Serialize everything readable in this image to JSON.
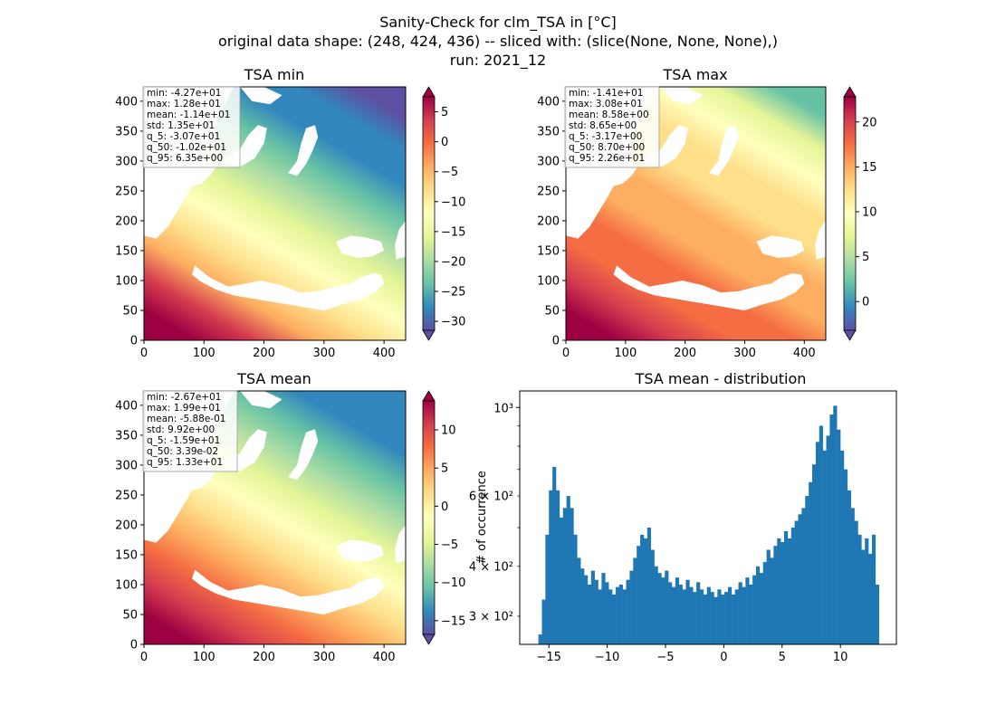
{
  "figure": {
    "title_lines": [
      "Sanity-Check for clm_TSA in [°C]",
      "original data shape: (248, 424, 436) -- sliced with: (slice(None, None, None),)",
      "run: 2021_12"
    ]
  },
  "colors": {
    "colormap": "Spectral_r",
    "colormap_stops": [
      "#5e4fa2",
      "#3288bd",
      "#66c2a5",
      "#abdda4",
      "#e6f598",
      "#ffffbf",
      "#fee08b",
      "#fdae61",
      "#f46d43",
      "#d53e4f",
      "#9e0142"
    ],
    "histogram_bar": "#1f77b4"
  },
  "chart_data": [
    {
      "type": "heatmap",
      "title": "TSA min",
      "x_ticks": [
        "0",
        "100",
        "200",
        "300",
        "400"
      ],
      "y_ticks": [
        "0",
        "50",
        "100",
        "150",
        "200",
        "250",
        "300",
        "350",
        "400"
      ],
      "xlim": [
        0,
        436
      ],
      "ylim": [
        0,
        424
      ],
      "colorbar": {
        "range": [
          -31.5,
          7.5
        ],
        "ticks": [
          "5",
          "0",
          "−5",
          "−10",
          "−15",
          "−20",
          "−25",
          "−30"
        ],
        "tick_values": [
          5,
          0,
          -5,
          -10,
          -15,
          -20,
          -25,
          -30
        ],
        "extend": "both"
      },
      "stats": [
        "min: -4.27e+01",
        "max: 1.28e+01",
        "mean: -1.14e+01",
        "std: 1.35e+01",
        "q_5: -3.07e+01",
        "q_50: -1.02e+01",
        "q_95: 6.35e+00"
      ]
    },
    {
      "type": "heatmap",
      "title": "TSA max",
      "x_ticks": [
        "0",
        "100",
        "200",
        "300",
        "400"
      ],
      "y_ticks": [
        "0",
        "50",
        "100",
        "150",
        "200",
        "250",
        "300",
        "350",
        "400"
      ],
      "xlim": [
        0,
        436
      ],
      "ylim": [
        0,
        424
      ],
      "colorbar": {
        "range": [
          -3.2,
          22.8
        ],
        "ticks": [
          "20",
          "15",
          "10",
          "5",
          "0"
        ],
        "tick_values": [
          20,
          15,
          10,
          5,
          0
        ],
        "extend": "both"
      },
      "stats": [
        "min: -1.41e+01",
        "max: 3.08e+01",
        "mean: 8.58e+00",
        "std: 8.65e+00",
        "q_5: -3.17e+00",
        "q_50: 8.70e+00",
        "q_95: 2.26e+01"
      ]
    },
    {
      "type": "heatmap",
      "title": "TSA mean",
      "x_ticks": [
        "0",
        "100",
        "200",
        "300",
        "400"
      ],
      "y_ticks": [
        "0",
        "50",
        "100",
        "150",
        "200",
        "250",
        "300",
        "350",
        "400"
      ],
      "xlim": [
        0,
        436
      ],
      "ylim": [
        0,
        424
      ],
      "colorbar": {
        "range": [
          -16.8,
          13.8
        ],
        "ticks": [
          "10",
          "5",
          "0",
          "−5",
          "−10",
          "−15"
        ],
        "tick_values": [
          10,
          5,
          0,
          -5,
          -10,
          -15
        ],
        "extend": "both"
      },
      "stats": [
        "min: -2.67e+01",
        "max: 1.99e+01",
        "mean: -5.88e-01",
        "std: 9.92e+00",
        "q_5: -1.59e+01",
        "q_50: 3.39e-02",
        "q_95: 1.33e+01"
      ]
    },
    {
      "type": "bar",
      "title": "TSA mean - distribution",
      "ylabel": "# of occurrence",
      "yscale": "log",
      "x_ticks": [
        "−15",
        "−10",
        "−5",
        "0",
        "5",
        "10"
      ],
      "x_tick_values": [
        -15,
        -10,
        -5,
        0,
        5,
        10
      ],
      "xlim": [
        -17.5,
        14.8
      ],
      "ylim": [
        255,
        1100
      ],
      "y_major_ticks": [
        "10³"
      ],
      "y_minor_labels": [
        "6 × 10²",
        "4 × 10²",
        "3 × 10²"
      ],
      "y_minor_values": [
        600,
        400,
        300
      ],
      "x_start": -15.9,
      "x_end": 13.3,
      "bins": [
        {
          "x": -15.8,
          "y": 270
        },
        {
          "x": -15.5,
          "y": 330
        },
        {
          "x": -15.2,
          "y": 480
        },
        {
          "x": -14.9,
          "y": 620
        },
        {
          "x": -14.6,
          "y": 710
        },
        {
          "x": -14.3,
          "y": 620
        },
        {
          "x": -14.0,
          "y": 530
        },
        {
          "x": -13.7,
          "y": 560
        },
        {
          "x": -13.4,
          "y": 600
        },
        {
          "x": -13.1,
          "y": 560
        },
        {
          "x": -12.8,
          "y": 480
        },
        {
          "x": -12.5,
          "y": 420
        },
        {
          "x": -12.2,
          "y": 395
        },
        {
          "x": -11.9,
          "y": 380
        },
        {
          "x": -11.6,
          "y": 360
        },
        {
          "x": -11.3,
          "y": 390
        },
        {
          "x": -11.0,
          "y": 370
        },
        {
          "x": -10.7,
          "y": 350
        },
        {
          "x": -10.4,
          "y": 385
        },
        {
          "x": -10.1,
          "y": 365
        },
        {
          "x": -9.8,
          "y": 350
        },
        {
          "x": -9.5,
          "y": 340
        },
        {
          "x": -9.2,
          "y": 355
        },
        {
          "x": -8.9,
          "y": 360
        },
        {
          "x": -8.6,
          "y": 350
        },
        {
          "x": -8.3,
          "y": 370
        },
        {
          "x": -8.0,
          "y": 390
        },
        {
          "x": -7.7,
          "y": 420
        },
        {
          "x": -7.4,
          "y": 450
        },
        {
          "x": -7.1,
          "y": 480
        },
        {
          "x": -6.8,
          "y": 470
        },
        {
          "x": -6.5,
          "y": 500
        },
        {
          "x": -6.2,
          "y": 440
        },
        {
          "x": -5.9,
          "y": 400
        },
        {
          "x": -5.6,
          "y": 385
        },
        {
          "x": -5.3,
          "y": 375
        },
        {
          "x": -5.0,
          "y": 390
        },
        {
          "x": -4.7,
          "y": 365
        },
        {
          "x": -4.4,
          "y": 355
        },
        {
          "x": -4.1,
          "y": 375
        },
        {
          "x": -3.8,
          "y": 360
        },
        {
          "x": -3.5,
          "y": 350
        },
        {
          "x": -3.2,
          "y": 370
        },
        {
          "x": -2.9,
          "y": 355
        },
        {
          "x": -2.6,
          "y": 345
        },
        {
          "x": -2.3,
          "y": 365
        },
        {
          "x": -2.0,
          "y": 350
        },
        {
          "x": -1.7,
          "y": 340
        },
        {
          "x": -1.4,
          "y": 355
        },
        {
          "x": -1.1,
          "y": 345
        },
        {
          "x": -0.8,
          "y": 335
        },
        {
          "x": -0.5,
          "y": 350
        },
        {
          "x": -0.2,
          "y": 340
        },
        {
          "x": 0.1,
          "y": 345
        },
        {
          "x": 0.4,
          "y": 355
        },
        {
          "x": 0.7,
          "y": 340
        },
        {
          "x": 1.0,
          "y": 350
        },
        {
          "x": 1.3,
          "y": 365
        },
        {
          "x": 1.6,
          "y": 355
        },
        {
          "x": 1.9,
          "y": 375
        },
        {
          "x": 2.2,
          "y": 360
        },
        {
          "x": 2.5,
          "y": 380
        },
        {
          "x": 2.8,
          "y": 400
        },
        {
          "x": 3.1,
          "y": 385
        },
        {
          "x": 3.4,
          "y": 410
        },
        {
          "x": 3.7,
          "y": 440
        },
        {
          "x": 4.0,
          "y": 420
        },
        {
          "x": 4.3,
          "y": 450
        },
        {
          "x": 4.6,
          "y": 470
        },
        {
          "x": 4.9,
          "y": 460
        },
        {
          "x": 5.2,
          "y": 490
        },
        {
          "x": 5.5,
          "y": 470
        },
        {
          "x": 5.8,
          "y": 500
        },
        {
          "x": 6.1,
          "y": 520
        },
        {
          "x": 6.4,
          "y": 540
        },
        {
          "x": 6.7,
          "y": 560
        },
        {
          "x": 7.0,
          "y": 600
        },
        {
          "x": 7.3,
          "y": 650
        },
        {
          "x": 7.6,
          "y": 720
        },
        {
          "x": 7.9,
          "y": 820
        },
        {
          "x": 8.2,
          "y": 900
        },
        {
          "x": 8.5,
          "y": 780
        },
        {
          "x": 8.8,
          "y": 850
        },
        {
          "x": 9.1,
          "y": 960
        },
        {
          "x": 9.4,
          "y": 1010
        },
        {
          "x": 9.7,
          "y": 880
        },
        {
          "x": 10.0,
          "y": 780
        },
        {
          "x": 10.3,
          "y": 700
        },
        {
          "x": 10.6,
          "y": 620
        },
        {
          "x": 10.9,
          "y": 560
        },
        {
          "x": 11.2,
          "y": 520
        },
        {
          "x": 11.5,
          "y": 480
        },
        {
          "x": 11.8,
          "y": 440
        },
        {
          "x": 12.1,
          "y": 470
        },
        {
          "x": 12.4,
          "y": 430
        },
        {
          "x": 12.7,
          "y": 480
        },
        {
          "x": 13.0,
          "y": 360
        }
      ]
    }
  ]
}
